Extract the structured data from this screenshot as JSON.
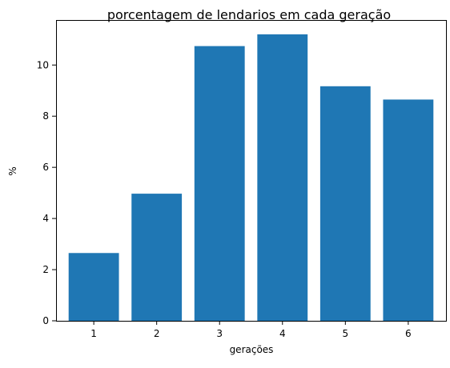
{
  "chart_data": {
    "type": "bar",
    "title": "porcentagem de lendarios em cada geração",
    "xlabel": "gerações",
    "ylabel": "%",
    "categories": [
      "1",
      "2",
      "3",
      "4",
      "5",
      "6"
    ],
    "values": [
      2.65,
      4.97,
      10.74,
      11.2,
      9.17,
      8.65
    ],
    "ylim": [
      0,
      11.76
    ],
    "yticks": [
      0,
      2,
      4,
      6,
      8,
      10
    ],
    "grid": false,
    "bar_color": "#1f77b4"
  }
}
